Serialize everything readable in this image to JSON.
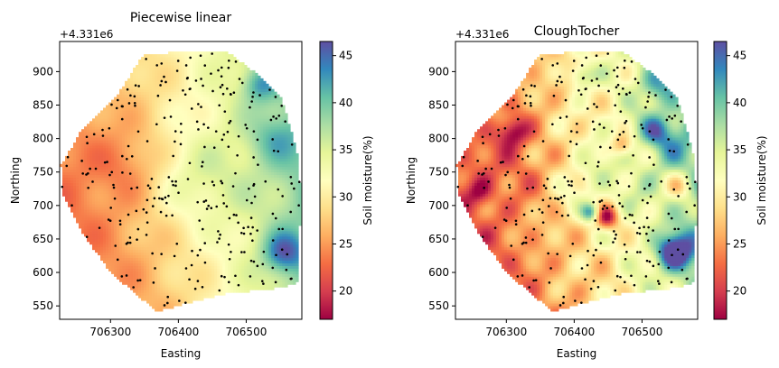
{
  "chart_data": [
    {
      "type": "heatmap",
      "title": "Piecewise linear",
      "xlabel": "Easting",
      "ylabel": "Northing",
      "offset_label": "+4.331e6",
      "xlim": [
        706225,
        706582
      ],
      "ylim": [
        530,
        945
      ],
      "xticks": [
        706300,
        706400,
        706500
      ],
      "yticks": [
        550,
        600,
        650,
        700,
        750,
        800,
        850,
        900
      ],
      "colorbar": {
        "label": "Soil moisture(%)",
        "range": [
          17,
          46.5
        ],
        "ticks": [
          20,
          25,
          30,
          35,
          40,
          45
        ],
        "colormap": "Spectral"
      },
      "field_summary": "Low moisture (red/orange, ~20-25%) dominates west and south-west; moderate yellow-green (~30-35%) in the centre; higher values (blue, ~40-45%) along the east edge near easting 706520-706580, northing 600-880."
    },
    {
      "type": "heatmap",
      "title": "CloughTocher",
      "xlabel": "Easting",
      "ylabel": "Northing",
      "offset_label": "+4.331e6",
      "xlim": [
        706225,
        706582
      ],
      "ylim": [
        530,
        945
      ],
      "xticks": [
        706300,
        706400,
        706500
      ],
      "yticks": [
        550,
        600,
        650,
        700,
        750,
        800,
        850,
        900
      ],
      "colorbar": {
        "label": "Soil moisture(%)",
        "range": [
          17,
          46.5
        ],
        "ticks": [
          20,
          25,
          30,
          35,
          40,
          45
        ],
        "colormap": "Spectral"
      },
      "field_summary": "Same sample points interpolated with smoother, more contrasted cubic patches: dark red lows (~17-20%) at around (706450, 680) and (706310, 810); blue highs (~42-46%) near the east edge around (706540, 630) and (706520, 810)."
    }
  ],
  "colors": {
    "spectral": [
      "#9e0142",
      "#d53e4f",
      "#f46d43",
      "#fdae61",
      "#fee08b",
      "#ffffbf",
      "#e6f598",
      "#abdda4",
      "#66c2a5",
      "#3288bd",
      "#5e4fa2"
    ],
    "sample_point": "#000000"
  }
}
